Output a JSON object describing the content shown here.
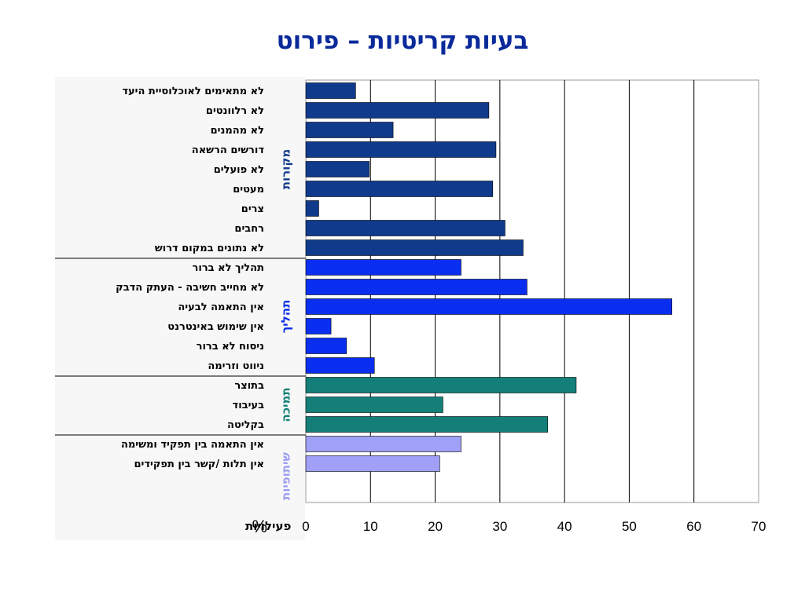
{
  "title": "בעיות קריטיות – פירוט",
  "chart_data": {
    "type": "bar",
    "orientation": "horizontal",
    "xlim": [
      0,
      70
    ],
    "xticks": [
      0,
      10,
      20,
      30,
      40,
      50,
      60,
      70
    ],
    "xlabel": {
      "symbol": "%",
      "text": "פעילויות"
    },
    "grid": true,
    "groups": [
      {
        "name": "מקורות",
        "color": "#103a8c",
        "label_color": "#123a8c",
        "items": [
          {
            "label": "לא מתאימים לאוכלוסיית היעד",
            "value": 7.7
          },
          {
            "label": "לא רלוונטים",
            "value": 28.3
          },
          {
            "label": "לא מהמנים",
            "value": 13.5
          },
          {
            "label": "דורשים הרשאה",
            "value": 29.4
          },
          {
            "label": "לא פועלים",
            "value": 9.8
          },
          {
            "label": "מעטים",
            "value": 28.9
          },
          {
            "label": "צרים",
            "value": 2.0
          },
          {
            "label": "רחבים",
            "value": 30.8
          },
          {
            "label": "לא נתונים במקום דרוש",
            "value": 33.6
          }
        ]
      },
      {
        "name": "תהליך",
        "color": "#0a2ef0",
        "label_color": "#0a2ee8",
        "items": [
          {
            "label": "תהליך לא ברור",
            "value": 24.0
          },
          {
            "label": "לא מחייב חשיבה - העתק הדבק",
            "value": 34.2
          },
          {
            "label": "אין התאמה לבעיה",
            "value": 56.6
          },
          {
            "label": "אין שימוש באינטרנט",
            "value": 3.9
          },
          {
            "label": "ניסוח לא ברור",
            "value": 6.3
          },
          {
            "label": "ניווט  וזרימה",
            "value": 10.6
          }
        ]
      },
      {
        "name": "תמיכה",
        "color": "#137f78",
        "label_color": "#138076",
        "items": [
          {
            "label": "בתוצר",
            "value": 41.8
          },
          {
            "label": "בעיבוד",
            "value": 21.2
          },
          {
            "label": "בקליטה",
            "value": 37.4
          }
        ]
      },
      {
        "name": "שיתופיות",
        "color": "#9fa0f6",
        "label_color": "#9b9cf2",
        "items": [
          {
            "label": "אין התאמה בין תפקיד ומשימה",
            "value": 24.0
          },
          {
            "label": "אין תלות /קשר בין תפקידים",
            "value": 20.7
          }
        ]
      }
    ]
  }
}
